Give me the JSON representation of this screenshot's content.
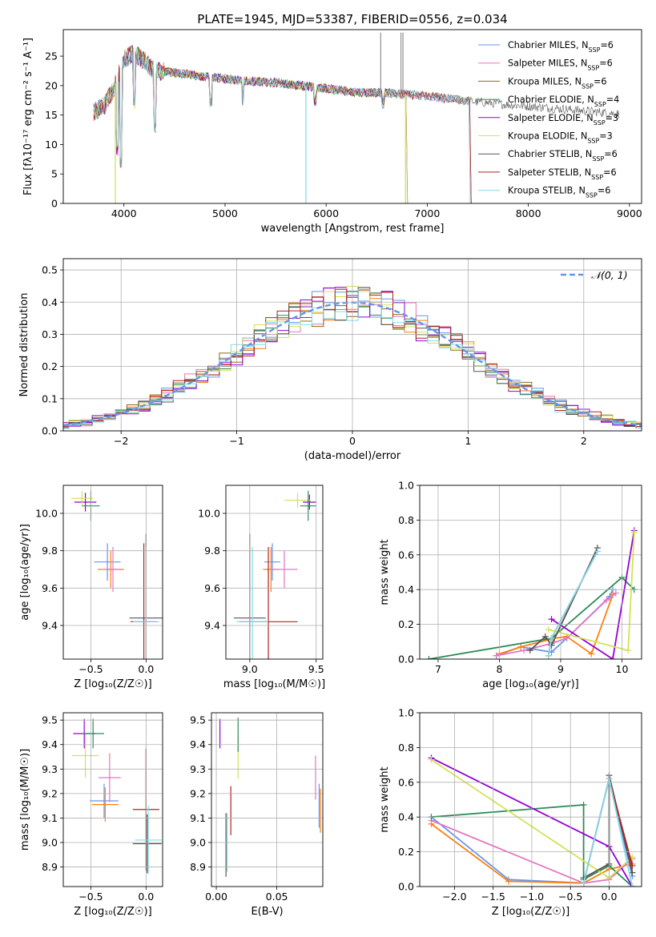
{
  "title": "PLATE=1945, MJD=53387, FIBERID=0556, z=0.034",
  "colors": {
    "c0": "#6495ed",
    "c1": "#ff7f0e",
    "c2": "#e377c2",
    "c3": "#8b6914",
    "c4": "#2e8b57",
    "c5": "#9400d3",
    "c6": "#d4e157",
    "c7": "#555555",
    "c8": "#b22222",
    "c9": "#80deea",
    "grid": "#b0b0b0"
  },
  "chart_data": [
    {
      "id": "spectrum",
      "type": "line",
      "xlabel": "wavelength [Angstrom, rest frame]",
      "ylabel": "Flux [fλ10⁻¹⁷ erg cm⁻² s⁻¹ A⁻¹]",
      "xlim": [
        3400,
        9120
      ],
      "ylim": [
        0,
        29.5
      ],
      "xticks": [
        4000,
        5000,
        6000,
        7000,
        8000,
        9000
      ],
      "yticks": [
        0,
        5,
        10,
        15,
        20,
        25
      ],
      "legend_position": "top-right",
      "legend": [
        {
          "label": "Chabrier MILES, N",
          "sub": "SSP",
          "suffix": "=6",
          "color": "#6495ed"
        },
        {
          "label": "Salpeter MILES, N",
          "sub": "SSP",
          "suffix": "=6",
          "color": "#e377c2"
        },
        {
          "label": "Kroupa MILES, N",
          "sub": "SSP",
          "suffix": "=6",
          "color": "#8b6914"
        },
        {
          "label": "Chabrier ELODIE, N",
          "sub": "SSP",
          "suffix": "=4",
          "color": "#2e8b57"
        },
        {
          "label": "Salpeter ELODIE, N",
          "sub": "SSP",
          "suffix": "=3",
          "color": "#9400d3"
        },
        {
          "label": "Kroupa ELODIE, N",
          "sub": "SSP",
          "suffix": "=3",
          "color": "#d4e157"
        },
        {
          "label": "Chabrier STELIB, N",
          "sub": "SSP",
          "suffix": "=6",
          "color": "#555555"
        },
        {
          "label": "Salpeter STELIB, N",
          "sub": "SSP",
          "suffix": "=6",
          "color": "#b22222"
        },
        {
          "label": "Kroupa STELIB, N",
          "sub": "SSP",
          "suffix": "=6",
          "color": "#80deea"
        }
      ],
      "continuum": {
        "x": [
          3700,
          3800,
          3900,
          4000,
          4100,
          4200,
          4300,
          4500,
          4800,
          5000,
          5200,
          5500,
          6000,
          6300,
          6600,
          7000,
          7500,
          8000,
          8500,
          8900
        ],
        "y": [
          15.5,
          16.5,
          19.5,
          24.5,
          25.5,
          24.2,
          22.5,
          22.2,
          21.5,
          21.2,
          20.8,
          20.5,
          19.5,
          18.8,
          18.8,
          18.2,
          17.2,
          16.5,
          15.8,
          15.2
        ]
      },
      "absorption_lines": [
        {
          "x": 3934,
          "y": 8
        },
        {
          "x": 3968,
          "y": 6
        },
        {
          "x": 4102,
          "y": 16
        },
        {
          "x": 4304,
          "y": 12
        },
        {
          "x": 4861,
          "y": 16
        },
        {
          "x": 5175,
          "y": 16.5
        },
        {
          "x": 5893,
          "y": 16.5
        },
        {
          "x": 6563,
          "y": 16
        }
      ],
      "spikes": [
        {
          "x": 5800,
          "y": 0
        },
        {
          "x": 6785,
          "y": 0
        },
        {
          "x": 3915,
          "y": 0
        },
        {
          "x": 6540,
          "y": 29
        },
        {
          "x": 6740,
          "y": 29
        },
        {
          "x": 6760,
          "y": 29
        }
      ],
      "cutoffs": [
        {
          "series": [
            1,
            8
          ],
          "x": 7410
        },
        {
          "series": [
            3,
            4,
            5
          ],
          "x": 6790
        }
      ]
    },
    {
      "id": "residuals",
      "type": "histogram",
      "xlabel": "(data-model)/error",
      "ylabel": "Normed distribution",
      "xlim": [
        -2.5,
        2.5
      ],
      "ylim": [
        0,
        0.535
      ],
      "xticks": [
        -2,
        -1,
        0,
        1,
        2
      ],
      "yticks": [
        0,
        0.1,
        0.2,
        0.3,
        0.4,
        0.5
      ],
      "bin_width": 0.1,
      "legend_position": "top-right",
      "curve_label": "𝒩(0, 1)",
      "curve_color": "#6495ed"
    },
    {
      "id": "age_vs_Z",
      "type": "scatter",
      "xlabel": "Z [log₁₀(Z/Z☉)]",
      "ylabel": "age  [log₁₀(age/yr)]",
      "xlim": [
        -0.75,
        0.15
      ],
      "ylim": [
        9.22,
        10.15
      ],
      "xticks": [
        -0.5,
        0.0
      ],
      "yticks": [
        9.4,
        9.6,
        9.8,
        10.0
      ],
      "points": [
        {
          "x": -0.35,
          "y": 9.74,
          "xe": 0.12,
          "ye": 0.1,
          "color": "#6495ed"
        },
        {
          "x": -0.32,
          "y": 9.7,
          "xe": 0.12,
          "ye": 0.1,
          "color": "#ff7f0e"
        },
        {
          "x": -0.3,
          "y": 9.7,
          "xe": 0.08,
          "ye": 0.12,
          "color": "#e377c2"
        },
        {
          "x": -0.55,
          "y": 10.06,
          "xe": 0.1,
          "ye": 0.05,
          "color": "#9400d3"
        },
        {
          "x": -0.58,
          "y": 10.08,
          "xe": 0.1,
          "ye": 0.04,
          "color": "#d4e157"
        },
        {
          "x": -0.5,
          "y": 10.04,
          "xe": 0.08,
          "ye": 0.08,
          "color": "#2e8b57"
        },
        {
          "x": 0.0,
          "y": 9.44,
          "xe": 0.15,
          "ye": 0.45,
          "color": "#555555"
        },
        {
          "x": -0.02,
          "y": 9.42,
          "xe": 0.12,
          "ye": 0.42,
          "color": "#b22222"
        },
        {
          "x": 0.0,
          "y": 9.42,
          "xe": 0.12,
          "ye": 0.4,
          "color": "#80deea"
        }
      ]
    },
    {
      "id": "age_vs_mass",
      "type": "scatter",
      "xlabel": "mass [log₁₀(M/M☉)]",
      "ylabel": "",
      "xlim": [
        8.82,
        9.55
      ],
      "ylim": [
        9.22,
        10.15
      ],
      "xticks": [
        9.0,
        9.5
      ],
      "yticks": [
        9.4,
        9.6,
        9.8,
        10.0
      ],
      "points": [
        {
          "x": 9.17,
          "y": 9.74,
          "xe": 0.06,
          "ye": 0.1,
          "color": "#6495ed"
        },
        {
          "x": 9.16,
          "y": 9.7,
          "xe": 0.06,
          "ye": 0.12,
          "color": "#ff7f0e"
        },
        {
          "x": 9.26,
          "y": 9.7,
          "xe": 0.1,
          "ye": 0.1,
          "color": "#e377c2"
        },
        {
          "x": 9.45,
          "y": 10.06,
          "xe": 0.05,
          "ye": 0.04,
          "color": "#9400d3"
        },
        {
          "x": 9.36,
          "y": 10.07,
          "xe": 0.1,
          "ye": 0.04,
          "color": "#d4e157"
        },
        {
          "x": 9.44,
          "y": 10.04,
          "xe": 0.06,
          "ye": 0.08,
          "color": "#2e8b57"
        },
        {
          "x": 9.0,
          "y": 9.44,
          "xe": 0.12,
          "ye": 0.45,
          "color": "#555555"
        },
        {
          "x": 9.14,
          "y": 9.42,
          "xe": 0.22,
          "ye": 0.4,
          "color": "#b22222"
        },
        {
          "x": 9.02,
          "y": 9.42,
          "xe": 0.12,
          "ye": 0.4,
          "color": "#80deea"
        }
      ]
    },
    {
      "id": "weight_vs_age",
      "type": "line",
      "xlabel": "age  [log₁₀(age/yr)]",
      "ylabel": "mass weight",
      "xlim": [
        6.7,
        10.32
      ],
      "ylim": [
        0,
        1.0
      ],
      "xticks": [
        7,
        8,
        9,
        10
      ],
      "yticks": [
        0.0,
        0.2,
        0.4,
        0.6,
        0.8,
        1.0
      ],
      "series": [
        {
          "color": "#6495ed",
          "x": [
            7.95,
            8.35,
            8.85,
            9.1,
            9.8,
            9.85
          ],
          "y": [
            0.02,
            0.07,
            0.04,
            0.12,
            0.36,
            0.4
          ]
        },
        {
          "color": "#ff7f0e",
          "x": [
            8.0,
            8.35,
            8.9,
            9.1,
            9.5,
            9.85
          ],
          "y": [
            0.03,
            0.07,
            0.12,
            0.13,
            0.03,
            0.37
          ]
        },
        {
          "color": "#e377c2",
          "x": [
            7.95,
            8.4,
            8.85,
            9.1,
            9.75,
            9.9
          ],
          "y": [
            0.02,
            0.05,
            0.09,
            0.12,
            0.34,
            0.38
          ]
        },
        {
          "color": "#2e8b57",
          "x": [
            6.85,
            8.85,
            10.0,
            10.2
          ],
          "y": [
            0.0,
            0.12,
            0.47,
            0.4
          ]
        },
        {
          "color": "#9400d3",
          "x": [
            8.85,
            9.85,
            10.2
          ],
          "y": [
            0.23,
            0.0,
            0.74
          ]
        },
        {
          "color": "#d4e157",
          "x": [
            8.8,
            10.1,
            10.2
          ],
          "y": [
            0.17,
            0.05,
            0.73
          ]
        },
        {
          "color": "#555555",
          "x": [
            8.5,
            8.75,
            8.85,
            9.6
          ],
          "y": [
            0.05,
            0.13,
            0.08,
            0.64
          ]
        },
        {
          "color": "#b22222",
          "x": [
            8.8,
            8.85,
            9.6
          ],
          "y": [
            0.02,
            0.12,
            0.62
          ]
        },
        {
          "color": "#80deea",
          "x": [
            8.8,
            8.85,
            9.6
          ],
          "y": [
            0.02,
            0.12,
            0.62
          ]
        }
      ]
    },
    {
      "id": "mass_vs_Z",
      "type": "scatter",
      "xlabel": "Z [log₁₀(Z/Z☉)]",
      "ylabel": "mass [log₁₀(M/M☉)]",
      "xlim": [
        -0.75,
        0.15
      ],
      "ylim": [
        8.82,
        9.53
      ],
      "xticks": [
        -0.5,
        0.0
      ],
      "yticks": [
        8.9,
        9.0,
        9.1,
        9.2,
        9.3,
        9.4,
        9.5
      ],
      "points": [
        {
          "x": -0.38,
          "y": 9.17,
          "xe": 0.13,
          "ye": 0.07,
          "color": "#6495ed"
        },
        {
          "x": -0.37,
          "y": 9.155,
          "xe": 0.12,
          "ye": 0.07,
          "color": "#ff7f0e"
        },
        {
          "x": -0.33,
          "y": 9.265,
          "xe": 0.1,
          "ye": 0.1,
          "color": "#e377c2"
        },
        {
          "x": -0.56,
          "y": 9.445,
          "xe": 0.1,
          "ye": 0.06,
          "color": "#9400d3"
        },
        {
          "x": -0.55,
          "y": 9.355,
          "xe": 0.12,
          "ye": 0.09,
          "color": "#d4e157"
        },
        {
          "x": -0.48,
          "y": 9.445,
          "xe": 0.1,
          "ye": 0.06,
          "color": "#2e8b57"
        },
        {
          "x": 0.01,
          "y": 8.995,
          "xe": 0.13,
          "ye": 0.12,
          "color": "#555555"
        },
        {
          "x": 0.0,
          "y": 9.135,
          "xe": 0.12,
          "ye": 0.25,
          "color": "#b22222"
        },
        {
          "x": 0.02,
          "y": 9.01,
          "xe": 0.12,
          "ye": 0.14,
          "color": "#80deea"
        }
      ]
    },
    {
      "id": "mass_vs_ebv",
      "type": "scatter",
      "xlabel": "E(B-V)",
      "ylabel": "",
      "xlim": [
        -0.004,
        0.088
      ],
      "ylim": [
        8.82,
        9.53
      ],
      "xticks": [
        0.0,
        0.05
      ],
      "yticks": [
        8.9,
        9.0,
        9.1,
        9.2,
        9.3,
        9.4,
        9.5
      ],
      "points": [
        {
          "x": 0.085,
          "y": 9.15,
          "xe": 0,
          "ye": 0.09,
          "color": "#6495ed"
        },
        {
          "x": 0.086,
          "y": 9.13,
          "xe": 0,
          "ye": 0.09,
          "color": "#ff7f0e"
        },
        {
          "x": 0.082,
          "y": 9.265,
          "xe": 0,
          "ye": 0.09,
          "color": "#e377c2"
        },
        {
          "x": 0.003,
          "y": 9.445,
          "xe": 0,
          "ye": 0.06,
          "color": "#9400d3"
        },
        {
          "x": 0.018,
          "y": 9.35,
          "xe": 0,
          "ye": 0.09,
          "color": "#d4e157"
        },
        {
          "x": 0.018,
          "y": 9.44,
          "xe": 0,
          "ye": 0.07,
          "color": "#2e8b57"
        },
        {
          "x": 0.008,
          "y": 8.99,
          "xe": 0,
          "ye": 0.13,
          "color": "#555555"
        },
        {
          "x": 0.012,
          "y": 9.13,
          "xe": 0,
          "ye": 0.1,
          "color": "#b22222"
        },
        {
          "x": 0.009,
          "y": 9.0,
          "xe": 0,
          "ye": 0.12,
          "color": "#80deea"
        }
      ]
    },
    {
      "id": "weight_vs_Z",
      "type": "line",
      "xlabel": "Z [log₁₀(Z/Z☉)]",
      "ylabel": "mass weight",
      "xlim": [
        -2.45,
        0.42
      ],
      "ylim": [
        0,
        1.0
      ],
      "xticks": [
        -2.0,
        -1.5,
        -1.0,
        -0.5,
        0.0
      ],
      "yticks": [
        0.0,
        0.2,
        0.4,
        0.6,
        0.8,
        1.0
      ],
      "series": [
        {
          "color": "#6495ed",
          "x": [
            -2.3,
            -1.3,
            -0.33,
            0.0,
            0.3
          ],
          "y": [
            0.4,
            0.04,
            0.02,
            0.62,
            0.06
          ]
        },
        {
          "color": "#ff7f0e",
          "x": [
            -2.3,
            -1.3,
            -0.33,
            0.0,
            0.3
          ],
          "y": [
            0.36,
            0.03,
            0.02,
            0.1,
            0.13
          ]
        },
        {
          "color": "#e377c2",
          "x": [
            -2.3,
            -0.33,
            0.0,
            0.3
          ],
          "y": [
            0.38,
            0.02,
            0.04,
            0.16
          ]
        },
        {
          "color": "#2e8b57",
          "x": [
            -2.3,
            -0.33,
            -0.33,
            0.0,
            0.3
          ],
          "y": [
            0.4,
            0.47,
            0.04,
            0.12,
            0.0
          ]
        },
        {
          "color": "#9400d3",
          "x": [
            -2.3,
            0.0,
            0.3
          ],
          "y": [
            0.74,
            0.23,
            0.0
          ]
        },
        {
          "color": "#d4e157",
          "x": [
            -2.3,
            0.0,
            0.3
          ],
          "y": [
            0.73,
            0.05,
            0.17
          ]
        },
        {
          "color": "#555555",
          "x": [
            -0.33,
            0.0,
            0.0,
            0.3
          ],
          "y": [
            0.05,
            0.13,
            0.64,
            0.08
          ]
        },
        {
          "color": "#b22222",
          "x": [
            -0.33,
            0.0,
            0.3
          ],
          "y": [
            0.02,
            0.62,
            0.12
          ]
        },
        {
          "color": "#80deea",
          "x": [
            -0.33,
            0.0,
            0.3
          ],
          "y": [
            0.02,
            0.62,
            0.0
          ]
        }
      ]
    }
  ]
}
